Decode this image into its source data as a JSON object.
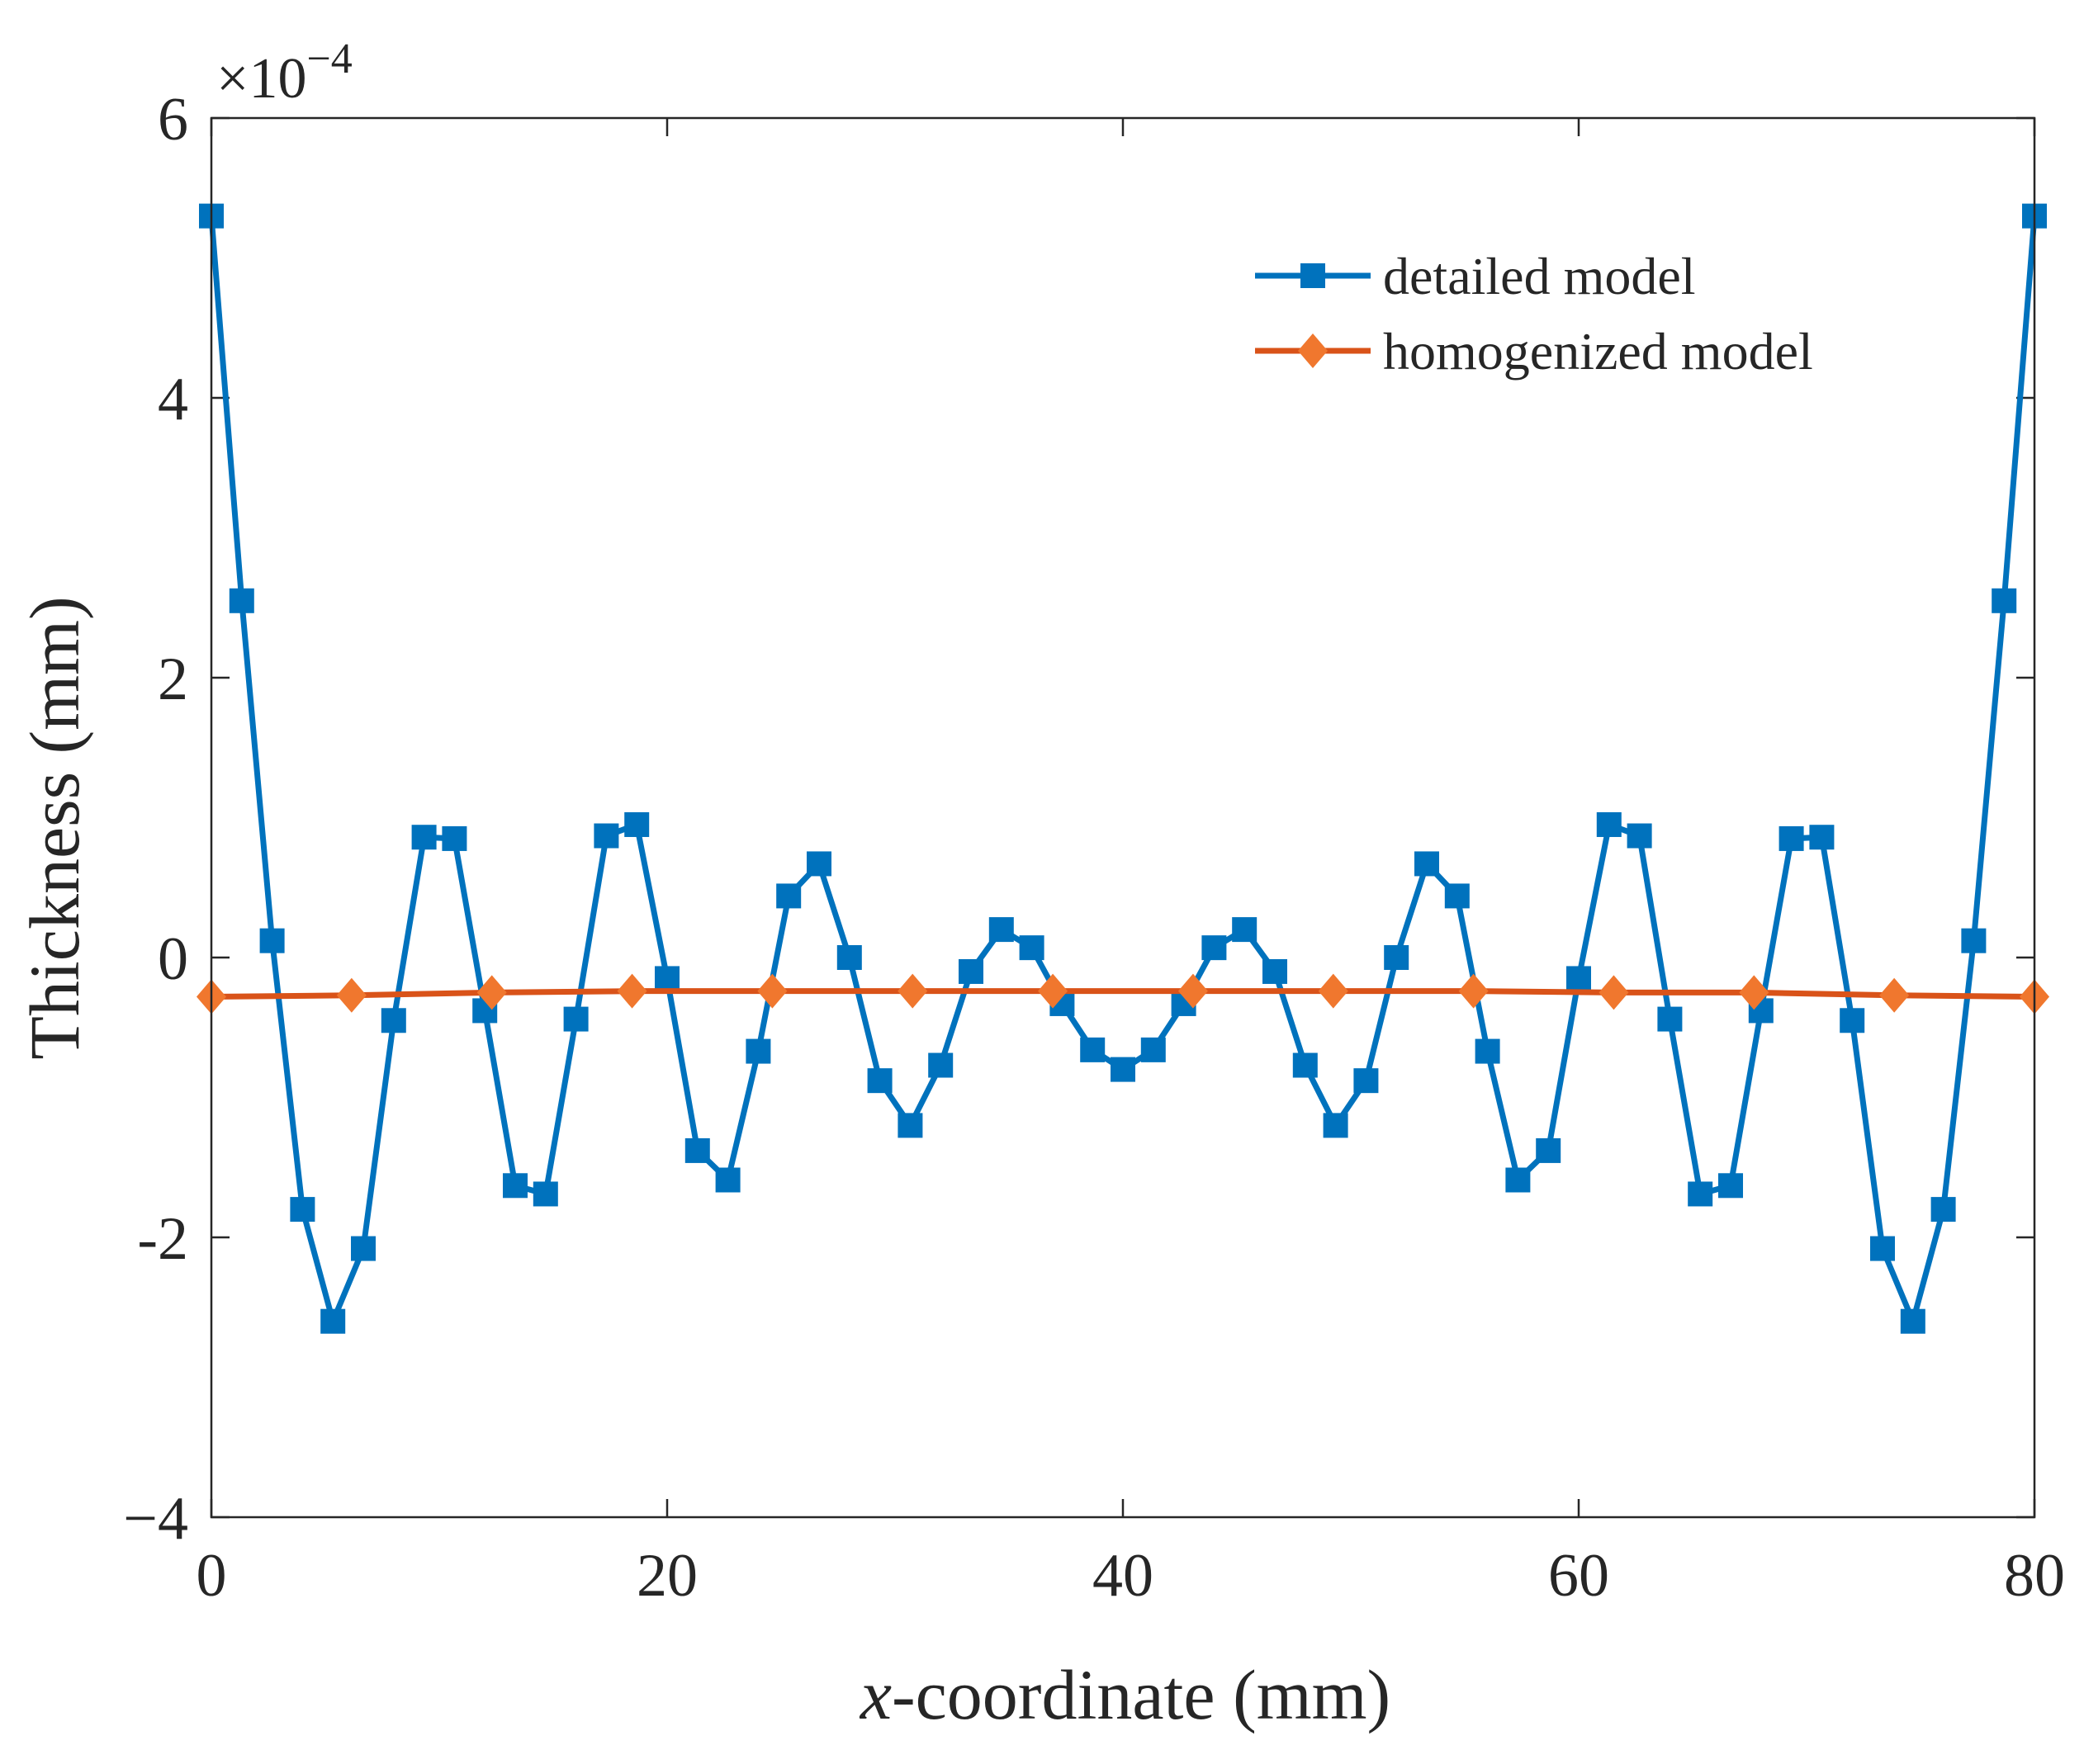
{
  "chart_data": {
    "type": "line",
    "xlabel_italic": "x",
    "xlabel_rest": "-coordinate (mm)",
    "ylabel": "Thickness (mm)",
    "exponent_prefix": "×10",
    "exponent_power": "−4",
    "xlim": [
      0,
      80
    ],
    "ylim": [
      -4,
      6
    ],
    "y_multiplier": 0.0001,
    "x_ticks": [
      0,
      20,
      40,
      60,
      80
    ],
    "x_tick_labels": [
      "0",
      "20",
      "40",
      "60",
      "80"
    ],
    "y_ticks": [
      -4,
      -2,
      0,
      2,
      4,
      6
    ],
    "y_tick_labels": [
      "−4",
      "-2",
      "0",
      "2",
      "4",
      "6"
    ],
    "grid": false,
    "legend_position": "top-right",
    "series": [
      {
        "name": "detailed model",
        "color": "#0072BD",
        "marker": "square",
        "x": [
          0,
          1.333,
          2.667,
          4.0,
          5.333,
          6.667,
          8.0,
          9.333,
          10.667,
          12.0,
          13.333,
          14.667,
          16.0,
          17.333,
          18.667,
          20.0,
          21.333,
          22.667,
          24.0,
          25.333,
          26.667,
          28.0,
          29.333,
          30.667,
          32.0,
          33.333,
          34.667,
          36.0,
          37.333,
          38.667,
          40.0,
          41.333,
          42.667,
          44.0,
          45.333,
          46.667,
          48.0,
          49.333,
          50.667,
          52.0,
          53.333,
          54.667,
          56.0,
          57.333,
          58.667,
          60.0,
          61.333,
          62.667,
          64.0,
          65.333,
          66.667,
          68.0,
          69.333,
          70.667,
          72.0,
          73.333,
          74.667,
          76.0,
          77.333,
          78.667,
          80.0
        ],
        "y": [
          5.3,
          2.55,
          0.12,
          -1.8,
          -2.6,
          -2.08,
          -0.45,
          0.86,
          0.85,
          -0.38,
          -1.63,
          -1.69,
          -0.44,
          0.87,
          0.95,
          -0.15,
          -1.38,
          -1.59,
          -0.67,
          0.44,
          0.67,
          0.0,
          -0.88,
          -1.2,
          -0.77,
          -0.1,
          0.2,
          0.07,
          -0.33,
          -0.66,
          -0.8,
          -0.66,
          -0.33,
          0.07,
          0.2,
          -0.1,
          -0.77,
          -1.2,
          -0.88,
          0.0,
          0.67,
          0.44,
          -0.67,
          -1.59,
          -1.38,
          -0.15,
          0.95,
          0.87,
          -0.44,
          -1.69,
          -1.63,
          -0.38,
          0.85,
          0.86,
          -0.45,
          -2.08,
          -2.6,
          -1.8,
          0.12,
          2.55,
          5.3
        ]
      },
      {
        "name": "homogenized model",
        "color": "#D95319",
        "marker_color": "#F0772E",
        "marker": "diamond",
        "x": [
          0,
          6.154,
          12.308,
          18.462,
          24.615,
          30.769,
          36.923,
          43.077,
          49.231,
          55.385,
          61.538,
          67.692,
          73.846,
          80.0
        ],
        "y": [
          -0.28,
          -0.27,
          -0.25,
          -0.24,
          -0.24,
          -0.24,
          -0.24,
          -0.24,
          -0.24,
          -0.24,
          -0.25,
          -0.25,
          -0.27,
          -0.28
        ]
      }
    ]
  }
}
